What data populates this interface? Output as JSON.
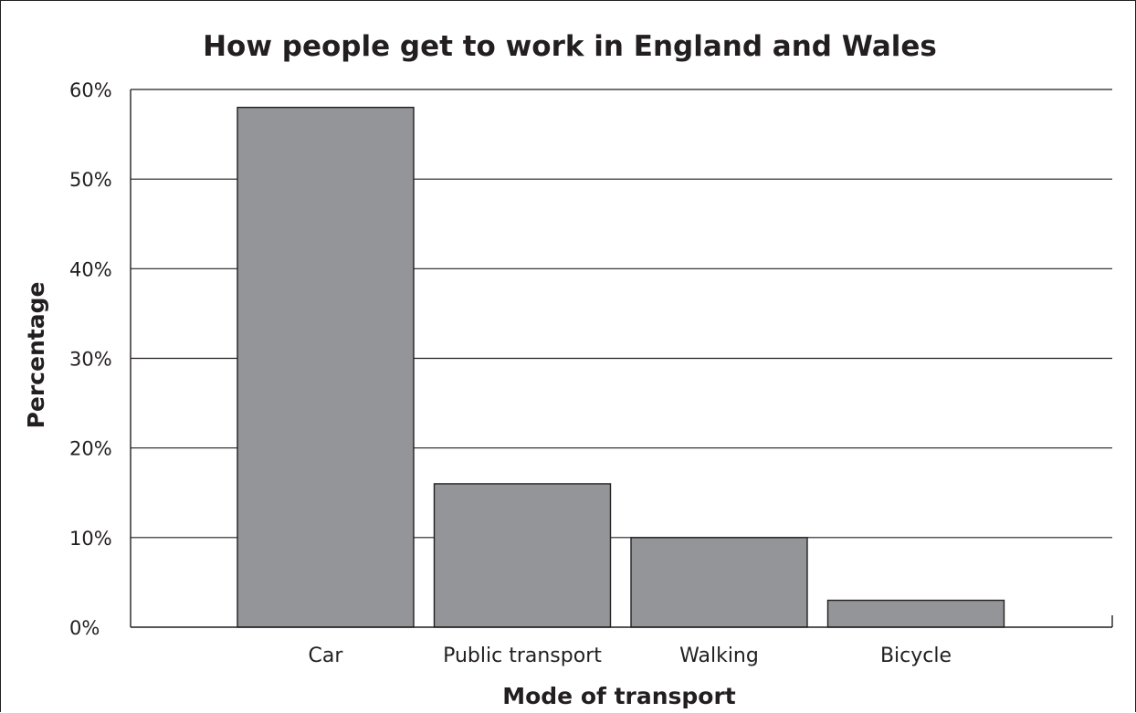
{
  "chart_data": {
    "type": "bar",
    "title": "How people get to work in England and Wales",
    "xlabel": "Mode of transport",
    "ylabel": "Percentage",
    "categories": [
      "Car",
      "Public transport",
      "Walking",
      "Bicycle"
    ],
    "values": [
      58,
      16,
      10,
      3
    ],
    "ylim": [
      0,
      60
    ],
    "yticks": [
      {
        "value": 0,
        "label": "0%"
      },
      {
        "value": 10,
        "label": "10%"
      },
      {
        "value": 20,
        "label": "20%"
      },
      {
        "value": 30,
        "label": "30%"
      },
      {
        "value": 40,
        "label": "40%"
      },
      {
        "value": 50,
        "label": "50%"
      },
      {
        "value": 60,
        "label": "60%"
      }
    ],
    "grid": true,
    "legend": "none",
    "colors": {
      "bar": "#939598",
      "ink": "#231f20"
    }
  }
}
